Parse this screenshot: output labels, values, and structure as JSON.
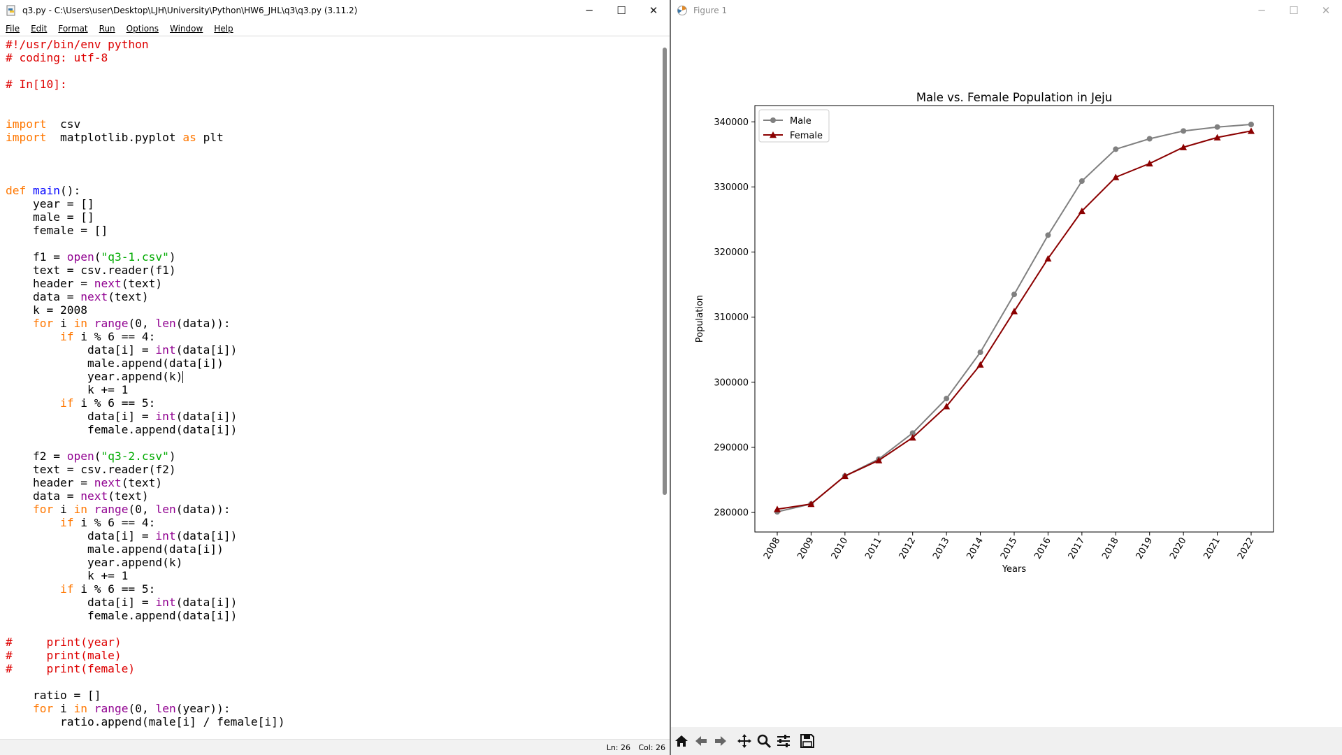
{
  "editor": {
    "title": "q3.py - C:\\Users\\user\\Desktop\\LJH\\University\\Python\\HW6_JHL\\q3\\q3.py (3.11.2)",
    "menu": [
      "File",
      "Edit",
      "Format",
      "Run",
      "Options",
      "Window",
      "Help"
    ],
    "status": {
      "line": "Ln: 26",
      "col": "Col: 26"
    },
    "colors": {
      "keyword": "#ff7700",
      "builtin": "#900090",
      "string": "#00aa00",
      "comment": "#dd0000",
      "definition": "#0000ff"
    },
    "code": [
      [
        [
          "cm",
          "#!/usr/bin/env python"
        ]
      ],
      [
        [
          "cm",
          "# coding: utf-8"
        ]
      ],
      [],
      [
        [
          "cm",
          "# In[10]:"
        ]
      ],
      [],
      [],
      [
        [
          "kw",
          "import"
        ],
        [
          "",
          "  csv"
        ]
      ],
      [
        [
          "kw",
          "import"
        ],
        [
          "",
          "  matplotlib.pyplot "
        ],
        [
          "kw",
          "as"
        ],
        [
          "",
          " plt"
        ]
      ],
      [],
      [],
      [],
      [
        [
          "kw",
          "def"
        ],
        [
          "",
          " "
        ],
        [
          "df",
          "main"
        ],
        [
          "",
          "():"
        ]
      ],
      [
        [
          "",
          "    year = []"
        ]
      ],
      [
        [
          "",
          "    male = []"
        ]
      ],
      [
        [
          "",
          "    female = []"
        ]
      ],
      [],
      [
        [
          "",
          "    f1 = "
        ],
        [
          "bi",
          "open"
        ],
        [
          "",
          "("
        ],
        [
          "st",
          "\"q3-1.csv\""
        ],
        [
          "",
          ")"
        ]
      ],
      [
        [
          "",
          "    text = csv.reader(f1)"
        ]
      ],
      [
        [
          "",
          "    header = "
        ],
        [
          "bi",
          "next"
        ],
        [
          "",
          "(text)"
        ]
      ],
      [
        [
          "",
          "    data = "
        ],
        [
          "bi",
          "next"
        ],
        [
          "",
          "(text)"
        ]
      ],
      [
        [
          "",
          "    k = 2008"
        ]
      ],
      [
        [
          "",
          "    "
        ],
        [
          "kw",
          "for"
        ],
        [
          "",
          " i "
        ],
        [
          "kw",
          "in"
        ],
        [
          "",
          " "
        ],
        [
          "bi",
          "range"
        ],
        [
          "",
          "(0, "
        ],
        [
          "bi",
          "len"
        ],
        [
          "",
          "(data)):"
        ]
      ],
      [
        [
          "",
          "        "
        ],
        [
          "kw",
          "if"
        ],
        [
          "",
          " i % 6 == 4:"
        ]
      ],
      [
        [
          "",
          "            data[i] = "
        ],
        [
          "bi",
          "int"
        ],
        [
          "",
          "(data[i])"
        ]
      ],
      [
        [
          "",
          "            male.append(data[i])"
        ]
      ],
      [
        [
          "",
          "            year.append(k)"
        ],
        [
          "caret",
          ""
        ]
      ],
      [
        [
          "",
          "            k += 1"
        ]
      ],
      [
        [
          "",
          "        "
        ],
        [
          "kw",
          "if"
        ],
        [
          "",
          " i % 6 == 5:"
        ]
      ],
      [
        [
          "",
          "            data[i] = "
        ],
        [
          "bi",
          "int"
        ],
        [
          "",
          "(data[i])"
        ]
      ],
      [
        [
          "",
          "            female.append(data[i])"
        ]
      ],
      [],
      [
        [
          "",
          "    f2 = "
        ],
        [
          "bi",
          "open"
        ],
        [
          "",
          "("
        ],
        [
          "st",
          "\"q3-2.csv\""
        ],
        [
          "",
          ")"
        ]
      ],
      [
        [
          "",
          "    text = csv.reader(f2)"
        ]
      ],
      [
        [
          "",
          "    header = "
        ],
        [
          "bi",
          "next"
        ],
        [
          "",
          "(text)"
        ]
      ],
      [
        [
          "",
          "    data = "
        ],
        [
          "bi",
          "next"
        ],
        [
          "",
          "(text)"
        ]
      ],
      [
        [
          "",
          "    "
        ],
        [
          "kw",
          "for"
        ],
        [
          "",
          " i "
        ],
        [
          "kw",
          "in"
        ],
        [
          "",
          " "
        ],
        [
          "bi",
          "range"
        ],
        [
          "",
          "(0, "
        ],
        [
          "bi",
          "len"
        ],
        [
          "",
          "(data)):"
        ]
      ],
      [
        [
          "",
          "        "
        ],
        [
          "kw",
          "if"
        ],
        [
          "",
          " i % 6 == 4:"
        ]
      ],
      [
        [
          "",
          "            data[i] = "
        ],
        [
          "bi",
          "int"
        ],
        [
          "",
          "(data[i])"
        ]
      ],
      [
        [
          "",
          "            male.append(data[i])"
        ]
      ],
      [
        [
          "",
          "            year.append(k)"
        ]
      ],
      [
        [
          "",
          "            k += 1"
        ]
      ],
      [
        [
          "",
          "        "
        ],
        [
          "kw",
          "if"
        ],
        [
          "",
          " i % 6 == 5:"
        ]
      ],
      [
        [
          "",
          "            data[i] = "
        ],
        [
          "bi",
          "int"
        ],
        [
          "",
          "(data[i])"
        ]
      ],
      [
        [
          "",
          "            female.append(data[i])"
        ]
      ],
      [],
      [
        [
          "cm",
          "#     print(year)"
        ]
      ],
      [
        [
          "cm",
          "#     print(male)"
        ]
      ],
      [
        [
          "cm",
          "#     print(female)"
        ]
      ],
      [],
      [
        [
          "",
          "    ratio = []"
        ]
      ],
      [
        [
          "",
          "    "
        ],
        [
          "kw",
          "for"
        ],
        [
          "",
          " i "
        ],
        [
          "kw",
          "in"
        ],
        [
          "",
          " "
        ],
        [
          "bi",
          "range"
        ],
        [
          "",
          "(0, "
        ],
        [
          "bi",
          "len"
        ],
        [
          "",
          "(year)):"
        ]
      ],
      [
        [
          "",
          "        ratio.append(male[i] / female[i])"
        ]
      ]
    ]
  },
  "figure": {
    "title": "Figure 1",
    "toolbar": [
      "home-icon",
      "back-arrow-icon",
      "forward-arrow-icon",
      "pan-icon",
      "zoom-icon",
      "configure-subplots-icon",
      "save-icon"
    ]
  },
  "chart_data": {
    "type": "line",
    "title": "Male vs. Female Population in Jeju",
    "xlabel": "Years",
    "ylabel": "Population",
    "categories": [
      "2008",
      "2009",
      "2010",
      "2011",
      "2012",
      "2013",
      "2014",
      "2015",
      "2016",
      "2017",
      "2018",
      "2019",
      "2020",
      "2021",
      "2022"
    ],
    "ylim": [
      277000,
      342500
    ],
    "yticks": [
      280000,
      290000,
      300000,
      310000,
      320000,
      330000,
      340000
    ],
    "legend": "upper left",
    "grid": false,
    "series": [
      {
        "name": "Male",
        "color": "#808080",
        "marker": "circle",
        "values": [
          280100,
          281300,
          285600,
          288200,
          292200,
          297500,
          304600,
          313500,
          322600,
          330900,
          335800,
          337400,
          338600,
          339200,
          339600
        ]
      },
      {
        "name": "Female",
        "color": "#8b0000",
        "marker": "triangle",
        "values": [
          280500,
          281300,
          285600,
          288000,
          291500,
          296300,
          302700,
          310900,
          319000,
          326300,
          331500,
          333600,
          336100,
          337600,
          338600
        ]
      }
    ]
  }
}
